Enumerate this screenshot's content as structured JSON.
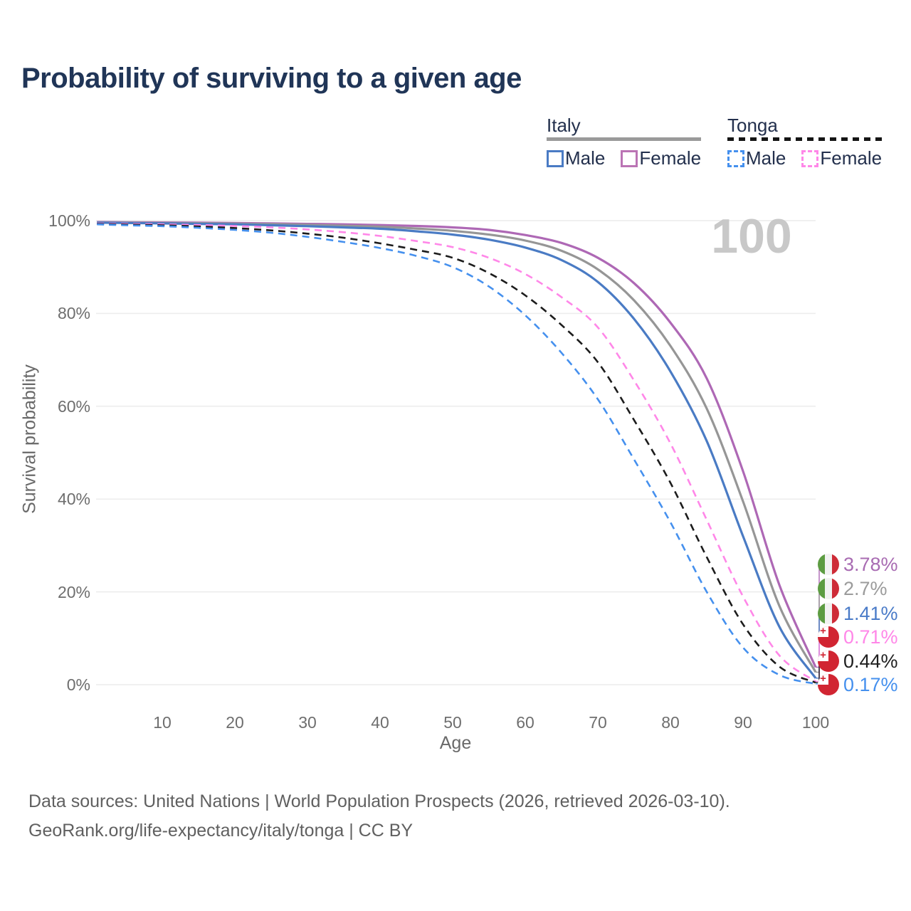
{
  "title": "Probability of surviving to a given age",
  "watermark": "100",
  "colors": {
    "background": "#ffffff",
    "title_text": "#203557",
    "grid": "#ececec",
    "tick_text": "#6e6e6e",
    "italy_male": "#4a7bc4",
    "italy_female": "#ae68b5",
    "italy_total": "#969696",
    "tonga_male": "#4590ee",
    "tonga_female": "#ff87e8",
    "tonga_total": "#1c1c1c"
  },
  "legend": {
    "groups": [
      {
        "label": "Italy",
        "line_style": "solid",
        "underline_color": "#9a9a9a",
        "items": [
          {
            "label": "Male",
            "color": "#4a7bc4"
          },
          {
            "label": "Female",
            "color": "#bb74b4"
          }
        ]
      },
      {
        "label": "Tonga",
        "line_style": "dashed",
        "underline_color": "#151515",
        "items": [
          {
            "label": "Male",
            "color": "#4590ee"
          },
          {
            "label": "Female",
            "color": "#ff87e8"
          }
        ]
      }
    ]
  },
  "axes": {
    "x_label": "Age",
    "y_label": "Survival probability",
    "y_ticks": [
      "100%",
      "80%",
      "60%",
      "40%",
      "20%",
      "0%"
    ],
    "x_ticks": [
      "10",
      "20",
      "30",
      "40",
      "50",
      "60",
      "70",
      "80",
      "90",
      "100"
    ]
  },
  "chart_data": {
    "type": "line",
    "title": "Probability of surviving to a given age",
    "xlabel": "Age",
    "ylabel": "Survival probability",
    "xlim": [
      0,
      100
    ],
    "ylim": [
      0,
      100
    ],
    "grid": true,
    "hover_age": 100,
    "x": [
      1,
      5,
      10,
      15,
      20,
      25,
      30,
      35,
      40,
      45,
      50,
      55,
      60,
      65,
      70,
      75,
      80,
      85,
      90,
      95,
      100
    ],
    "series": [
      {
        "id": "italy-female",
        "name": "Italy Female",
        "country": "Italy",
        "sex": "Female",
        "style": "solid",
        "color": "#ae68b5",
        "values": [
          99.7,
          99.65,
          99.6,
          99.55,
          99.5,
          99.4,
          99.3,
          99.2,
          99.05,
          98.85,
          98.55,
          98.0,
          96.9,
          95.2,
          92.0,
          86.5,
          78.0,
          66.0,
          46.0,
          21.5,
          3.78
        ],
        "value_at_100": 3.78
      },
      {
        "id": "italy-total",
        "name": "Italy Total",
        "country": "Italy",
        "sex": "Both",
        "style": "solid",
        "color": "#969696",
        "values": [
          99.6,
          99.55,
          99.5,
          99.45,
          99.35,
          99.25,
          99.1,
          98.9,
          98.7,
          98.3,
          97.8,
          97.0,
          95.7,
          93.5,
          89.5,
          82.8,
          73.0,
          59.5,
          39.5,
          17.0,
          2.7
        ],
        "value_at_100": 2.7
      },
      {
        "id": "italy-male",
        "name": "Italy Male",
        "country": "Italy",
        "sex": "Male",
        "style": "solid",
        "color": "#4a7bc4",
        "values": [
          99.55,
          99.5,
          99.4,
          99.3,
          99.2,
          99.0,
          98.8,
          98.55,
          98.25,
          97.7,
          97.0,
          95.9,
          94.2,
          91.5,
          86.8,
          78.8,
          67.5,
          52.5,
          32.0,
          12.5,
          1.41
        ],
        "value_at_100": 1.41
      },
      {
        "id": "tonga-female",
        "name": "Tonga Female",
        "country": "Tonga",
        "sex": "Female",
        "style": "dashed",
        "color": "#ff87e8",
        "values": [
          99.4,
          99.3,
          99.2,
          99.05,
          98.85,
          98.55,
          98.1,
          97.5,
          96.7,
          95.6,
          94.3,
          92.0,
          88.5,
          83.5,
          77.0,
          65.5,
          52.0,
          35.5,
          19.0,
          6.3,
          0.71
        ],
        "value_at_100": 0.71
      },
      {
        "id": "tonga-total",
        "name": "Tonga Total",
        "country": "Tonga",
        "sex": "Both",
        "style": "dashed",
        "color": "#1c1c1c",
        "values": [
          99.3,
          99.15,
          99.0,
          98.75,
          98.4,
          97.9,
          97.2,
          96.3,
          95.1,
          93.7,
          92.0,
          88.7,
          83.9,
          77.5,
          69.5,
          57.0,
          43.5,
          27.5,
          13.0,
          3.9,
          0.44
        ],
        "value_at_100": 0.44
      },
      {
        "id": "tonga-male",
        "name": "Tonga Male",
        "country": "Tonga",
        "sex": "Male",
        "style": "dashed",
        "color": "#4590ee",
        "values": [
          99.2,
          99.0,
          98.8,
          98.45,
          98.0,
          97.4,
          96.5,
          95.4,
          94.1,
          92.4,
          90.0,
          85.8,
          79.6,
          71.5,
          61.5,
          48.5,
          35.0,
          20.0,
          8.0,
          2.1,
          0.17
        ],
        "value_at_100": 0.17
      }
    ]
  },
  "end_labels": [
    {
      "id": "italy-female",
      "flag": "italy",
      "text": "3.78%",
      "color": "#a86bb2"
    },
    {
      "id": "italy-total",
      "flag": "italy",
      "text": "2.7%",
      "color": "#9b9b9b"
    },
    {
      "id": "italy-male",
      "flag": "italy",
      "text": "1.41%",
      "color": "#4a7bc8"
    },
    {
      "id": "tonga-female",
      "flag": "tonga",
      "text": "0.71%",
      "color": "#ff87e8"
    },
    {
      "id": "tonga-total",
      "flag": "tonga",
      "text": "0.44%",
      "color": "#1f1f1f"
    },
    {
      "id": "tonga-male",
      "flag": "tonga",
      "text": "0.17%",
      "color": "#4590ee"
    }
  ],
  "footer": {
    "line1": "Data sources: United Nations | World Population Prospects (2026, retrieved 2026-03-10).",
    "line2": "GeoRank.org/life-expectancy/italy/tonga | CC BY"
  }
}
